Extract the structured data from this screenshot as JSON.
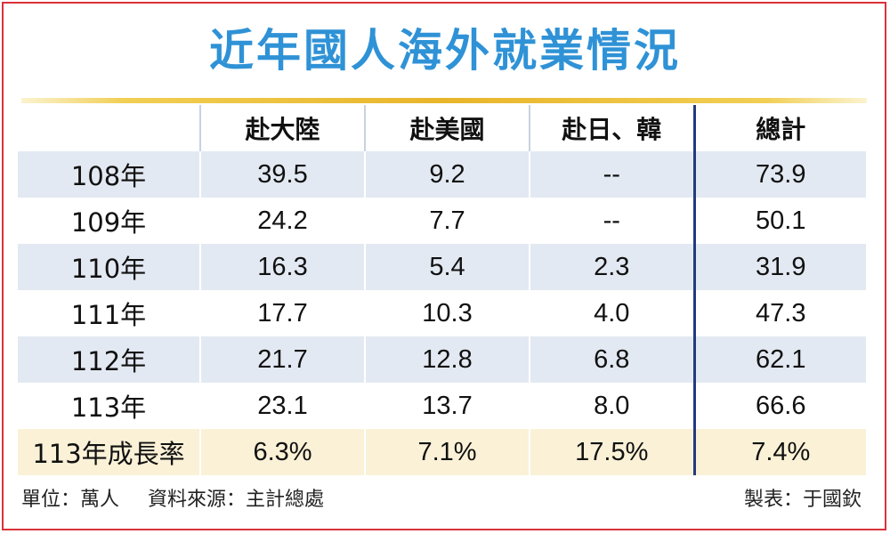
{
  "title": "近年國人海外就業情況",
  "table": {
    "headers": [
      "",
      "赴大陸",
      "赴美國",
      "赴日、韓",
      "總計"
    ],
    "rows": [
      {
        "label": "108年",
        "values": [
          "39.5",
          "9.2",
          "--",
          "73.9"
        ]
      },
      {
        "label": "109年",
        "values": [
          "24.2",
          "7.7",
          "--",
          "50.1"
        ]
      },
      {
        "label": "110年",
        "values": [
          "16.3",
          "5.4",
          "2.3",
          "31.9"
        ]
      },
      {
        "label": "111年",
        "values": [
          "17.7",
          "10.3",
          "4.0",
          "47.3"
        ]
      },
      {
        "label": "112年",
        "values": [
          "21.7",
          "12.8",
          "6.8",
          "62.1"
        ]
      },
      {
        "label": "113年",
        "values": [
          "23.1",
          "13.7",
          "8.0",
          "66.6"
        ]
      },
      {
        "label": "113年成長率",
        "values": [
          "6.3%",
          "7.1%",
          "17.5%",
          "7.4%"
        ]
      }
    ]
  },
  "footer": {
    "unit": "單位：萬人",
    "source": "資料來源：主計總處",
    "credit": "製表：于國欽"
  },
  "colors": {
    "title": "#2f92d6",
    "border": "#d9323a",
    "row_shade": "#e3e9f2",
    "growth_row": "#faf1d7",
    "total_divider": "#233a80",
    "rule_gold": "#e8b52a"
  },
  "chart_data": {
    "type": "table",
    "title": "近年國人海外就業情況",
    "columns": [
      "赴大陸",
      "赴美國",
      "赴日、韓",
      "總計"
    ],
    "rows": [
      "108年",
      "109年",
      "110年",
      "111年",
      "112年",
      "113年",
      "113年成長率"
    ],
    "values": [
      [
        39.5,
        9.2,
        null,
        73.9
      ],
      [
        24.2,
        7.7,
        null,
        50.1
      ],
      [
        16.3,
        5.4,
        2.3,
        31.9
      ],
      [
        17.7,
        10.3,
        4.0,
        47.3
      ],
      [
        21.7,
        12.8,
        6.8,
        62.1
      ],
      [
        23.1,
        13.7,
        8.0,
        66.6
      ],
      [
        "6.3%",
        "7.1%",
        "17.5%",
        "7.4%"
      ]
    ],
    "unit": "萬人"
  }
}
